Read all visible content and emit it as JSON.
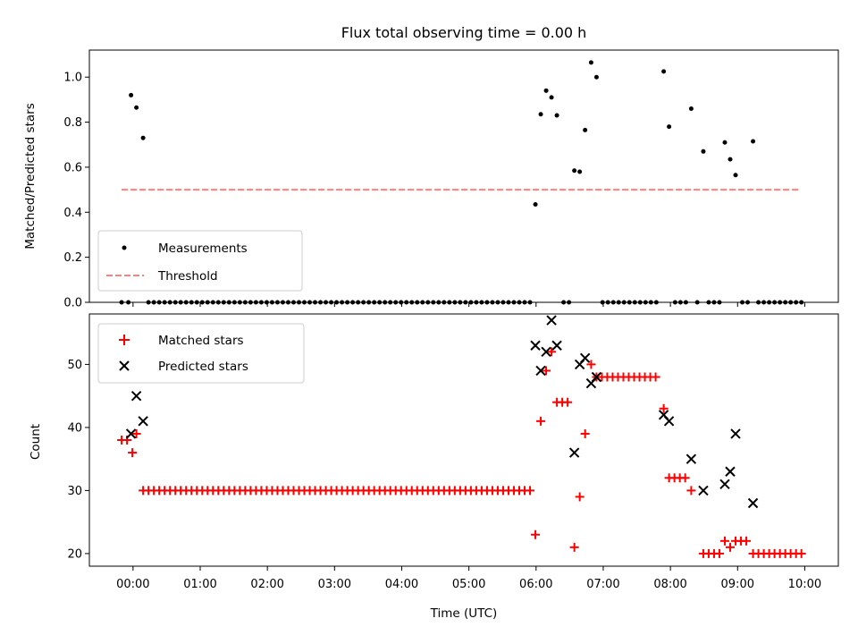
{
  "chart_data": [
    {
      "type": "scatter",
      "title": "Flux total observing time = 0.00 h",
      "xlabel": "",
      "ylabel": "Matched/Predicted stars",
      "xlim": [
        -0.65,
        10.5
      ],
      "ylim": [
        0,
        1.12
      ],
      "yticks": [
        "0.0",
        "0.2",
        "0.4",
        "0.6",
        "0.8",
        "1.0"
      ],
      "ytick_values": [
        0,
        0.2,
        0.4,
        0.6,
        0.8,
        1.0
      ],
      "legend_position": "lower-left",
      "threshold": {
        "name": "Threshold",
        "value": 0.5,
        "x_range": [
          -0.17,
          9.93
        ],
        "color": "#ff7f7f"
      },
      "series": [
        {
          "name": "Measurements",
          "color": "#000000",
          "marker": "dot",
          "points": [
            [
              -0.17,
              0
            ],
            [
              -0.07,
              0
            ],
            [
              -0.03,
              0.92
            ],
            [
              0.05,
              0.865
            ],
            [
              0.15,
              0.73
            ],
            [
              5.99,
              0.435
            ],
            [
              6.07,
              0.835
            ],
            [
              6.15,
              0.94
            ],
            [
              6.23,
              0.91
            ],
            [
              6.31,
              0.83
            ],
            [
              6.41,
              0
            ],
            [
              6.49,
              0
            ],
            [
              6.57,
              0.585
            ],
            [
              6.65,
              0.58
            ],
            [
              6.73,
              0.765
            ],
            [
              6.82,
              1.065
            ],
            [
              6.9,
              1.0
            ],
            [
              7.9,
              1.025
            ],
            [
              7.98,
              0.78
            ],
            [
              8.31,
              0.86
            ],
            [
              8.49,
              0.67
            ],
            [
              8.81,
              0.71
            ],
            [
              8.89,
              0.635
            ],
            [
              8.97,
              0.565
            ],
            [
              9.23,
              0.715
            ],
            [
              8.07,
              0
            ],
            [
              8.15,
              0
            ],
            [
              8.23,
              0
            ],
            [
              8.4,
              0
            ],
            [
              8.57,
              0
            ],
            [
              8.65,
              0
            ],
            [
              8.73,
              0
            ],
            [
              9.07,
              0
            ],
            [
              9.15,
              0
            ],
            [
              9.31,
              0
            ],
            [
              9.39,
              0
            ],
            [
              9.47,
              0
            ],
            [
              9.55,
              0
            ],
            [
              9.63,
              0
            ],
            [
              9.71,
              0
            ],
            [
              9.79,
              0
            ],
            [
              9.87,
              0
            ],
            [
              9.95,
              0
            ]
          ],
          "zero_runs": [
            {
              "from": 0.23,
              "to": 5.93,
              "step": 0.08,
              "value": 0
            },
            {
              "from": 6.99,
              "to": 7.81,
              "step": 0.08,
              "value": 0
            }
          ]
        }
      ]
    },
    {
      "type": "scatter",
      "title": "",
      "xlabel": "Time (UTC)",
      "ylabel": "Count",
      "xlim": [
        -0.65,
        10.5
      ],
      "ylim": [
        18,
        58
      ],
      "yticks": [
        "20",
        "30",
        "40",
        "50"
      ],
      "ytick_values": [
        20,
        30,
        40,
        50
      ],
      "xticks": [
        "00:00",
        "01:00",
        "02:00",
        "03:00",
        "04:00",
        "05:00",
        "06:00",
        "07:00",
        "08:00",
        "09:00",
        "10:00"
      ],
      "xtick_values": [
        0,
        1,
        2,
        3,
        4,
        5,
        6,
        7,
        8,
        9,
        10
      ],
      "legend_position": "upper-left",
      "series": [
        {
          "name": "Matched stars",
          "color": "#ff0000",
          "marker": "plus",
          "points": [
            [
              -0.17,
              38
            ],
            [
              -0.09,
              38
            ],
            [
              -0.01,
              36
            ],
            [
              0.05,
              39
            ],
            [
              5.99,
              23
            ],
            [
              6.07,
              41
            ],
            [
              6.15,
              49
            ],
            [
              6.23,
              52
            ],
            [
              6.31,
              44
            ],
            [
              6.39,
              44
            ],
            [
              6.47,
              44
            ],
            [
              6.57,
              21
            ],
            [
              6.65,
              29
            ],
            [
              6.73,
              39
            ],
            [
              6.82,
              50
            ],
            [
              6.9,
              48
            ],
            [
              7.9,
              43
            ],
            [
              7.98,
              32
            ],
            [
              8.06,
              32
            ],
            [
              8.14,
              32
            ],
            [
              8.22,
              32
            ],
            [
              8.31,
              30
            ],
            [
              8.49,
              20
            ],
            [
              8.57,
              20
            ],
            [
              8.65,
              20
            ],
            [
              8.73,
              20
            ],
            [
              8.81,
              22
            ],
            [
              8.89,
              21
            ],
            [
              8.97,
              22
            ],
            [
              9.05,
              22
            ],
            [
              9.13,
              22
            ],
            [
              9.23,
              20
            ]
          ],
          "runs": [
            {
              "from": 0.15,
              "to": 5.93,
              "step": 0.08,
              "value": 30
            },
            {
              "from": 6.98,
              "to": 7.82,
              "step": 0.08,
              "value": 48
            },
            {
              "from": 9.31,
              "to": 9.99,
              "step": 0.08,
              "value": 20
            }
          ]
        },
        {
          "name": "Predicted stars",
          "color": "#000000",
          "marker": "x",
          "points": [
            [
              -0.03,
              39
            ],
            [
              0.05,
              45
            ],
            [
              0.15,
              41
            ],
            [
              5.99,
              53
            ],
            [
              6.07,
              49
            ],
            [
              6.15,
              52
            ],
            [
              6.23,
              57
            ],
            [
              6.31,
              53
            ],
            [
              6.57,
              36
            ],
            [
              6.65,
              50
            ],
            [
              6.73,
              51
            ],
            [
              6.82,
              47
            ],
            [
              6.9,
              48
            ],
            [
              7.9,
              42
            ],
            [
              7.98,
              41
            ],
            [
              8.31,
              35
            ],
            [
              8.49,
              30
            ],
            [
              8.81,
              31
            ],
            [
              8.89,
              33
            ],
            [
              8.97,
              39
            ],
            [
              9.23,
              28
            ]
          ]
        }
      ]
    }
  ]
}
